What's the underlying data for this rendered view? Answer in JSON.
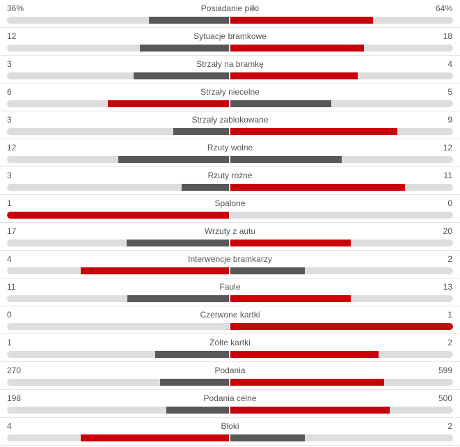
{
  "stats": [
    {
      "name": "Posiadanie piłki",
      "home": "36%",
      "away": "64%",
      "home_value": 36,
      "away_value": 64
    },
    {
      "name": "Sytuacje bramkowe",
      "home": "12",
      "away": "18",
      "home_value": 12,
      "away_value": 18
    },
    {
      "name": "Strzały na bramkę",
      "home": "3",
      "away": "4",
      "home_value": 3,
      "away_value": 4
    },
    {
      "name": "Strzały niecelne",
      "home": "6",
      "away": "5",
      "home_value": 6,
      "away_value": 5
    },
    {
      "name": "Strzały zablokowane",
      "home": "3",
      "away": "9",
      "home_value": 3,
      "away_value": 9
    },
    {
      "name": "Rzuty wolne",
      "home": "12",
      "away": "12",
      "home_value": 12,
      "away_value": 12
    },
    {
      "name": "Rzuty rożne",
      "home": "3",
      "away": "11",
      "home_value": 3,
      "away_value": 11
    },
    {
      "name": "Spalone",
      "home": "1",
      "away": "0",
      "home_value": 1,
      "away_value": 0
    },
    {
      "name": "Wrzuty z autu",
      "home": "17",
      "away": "20",
      "home_value": 17,
      "away_value": 20
    },
    {
      "name": "Interwencje bramkarzy",
      "home": "4",
      "away": "2",
      "home_value": 4,
      "away_value": 2
    },
    {
      "name": "Faule",
      "home": "11",
      "away": "13",
      "home_value": 11,
      "away_value": 13
    },
    {
      "name": "Czerwone kartki",
      "home": "0",
      "away": "1",
      "home_value": 0,
      "away_value": 1
    },
    {
      "name": "Żółte kartki",
      "home": "1",
      "away": "2",
      "home_value": 1,
      "away_value": 2
    },
    {
      "name": "Podania",
      "home": "270",
      "away": "599",
      "home_value": 270,
      "away_value": 599
    },
    {
      "name": "Podania celne",
      "home": "198",
      "away": "500",
      "home_value": 198,
      "away_value": 500
    },
    {
      "name": "Bloki",
      "home": "4",
      "away": "2",
      "home_value": 4,
      "away_value": 2
    }
  ],
  "colors": {
    "leader_bar": "#c8000a",
    "trailer_bar": "#585858",
    "track": "#dddddd",
    "text": "#555555",
    "divider": "#e4e4e4"
  }
}
